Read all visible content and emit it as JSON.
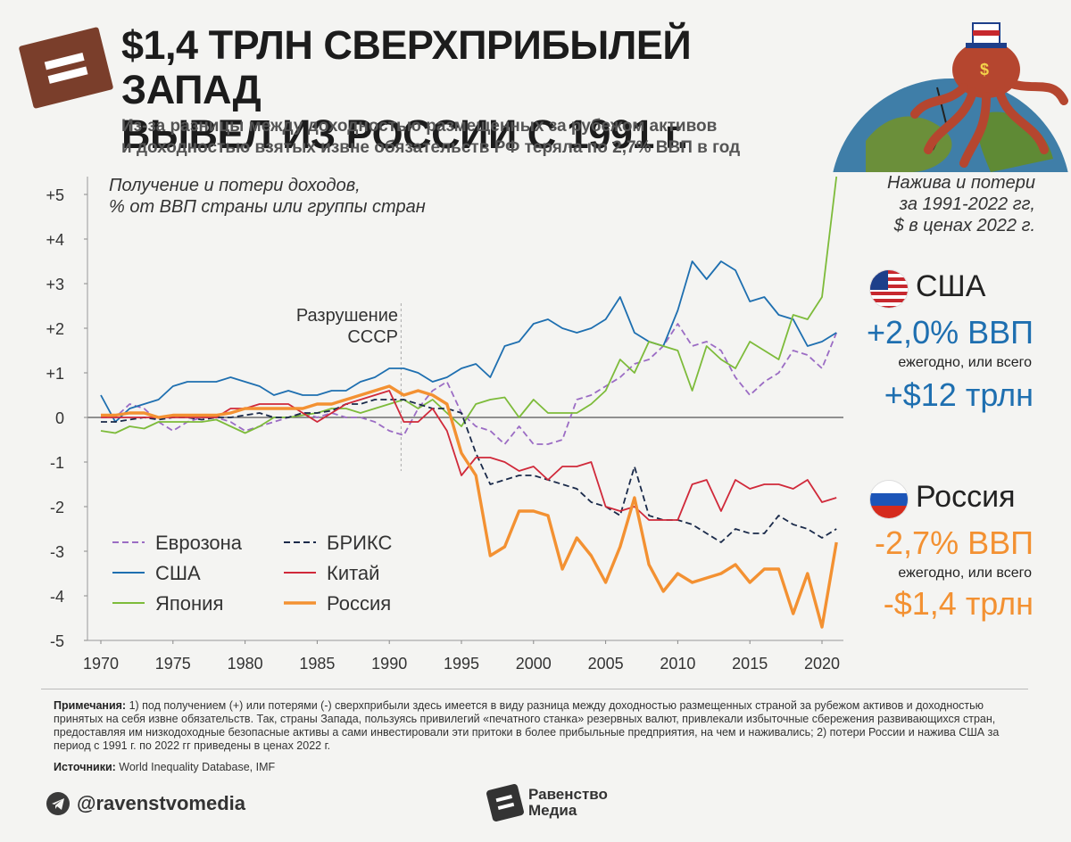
{
  "header": {
    "title_line1": "$1,4 ТРЛН СВЕРХПРИБЫЛЕЙ ЗАПАД",
    "title_line2": "ВЫВЕЛ ИЗ РОССИИ С 1991 г.",
    "subtitle_line1": "Из-за разницы между доходностью размещенных за рубежом активов",
    "subtitle_line2": "и доходностью взятых извне обязательств РФ теряла по 2,7% ВВП в год"
  },
  "chart_data": {
    "type": "line",
    "caption_line1": "Получение и потери доходов,",
    "caption_line2": "% от ВВП страны или группы стран",
    "x": [
      1970,
      1971,
      1972,
      1973,
      1974,
      1975,
      1976,
      1977,
      1978,
      1979,
      1980,
      1981,
      1982,
      1983,
      1984,
      1985,
      1986,
      1987,
      1988,
      1989,
      1990,
      1991,
      1992,
      1993,
      1994,
      1995,
      1996,
      1997,
      1998,
      1999,
      2000,
      2001,
      2002,
      2003,
      2004,
      2005,
      2006,
      2007,
      2008,
      2009,
      2010,
      2011,
      2012,
      2013,
      2014,
      2015,
      2016,
      2017,
      2018,
      2019,
      2020,
      2021
    ],
    "xlim": [
      1969,
      2022
    ],
    "ylim": [
      -5,
      5.4
    ],
    "x_ticks": [
      "1970",
      "1975",
      "1980",
      "1985",
      "1990",
      "1995",
      "2000",
      "2005",
      "2010",
      "2015",
      "2020"
    ],
    "y_ticks": [
      "+5",
      "+4",
      "+3",
      "+2",
      "+1",
      "0",
      "-1",
      "-2",
      "-3",
      "-4",
      "-5"
    ],
    "annotation": {
      "year": 1991,
      "line1": "Разрушение",
      "line2": "СССР"
    },
    "series": [
      {
        "name": "Еврозона",
        "color": "#9b6cc4",
        "dash": true,
        "values": [
          0.0,
          0.0,
          0.3,
          0.2,
          -0.1,
          -0.3,
          -0.1,
          0.0,
          0.0,
          -0.1,
          -0.3,
          -0.2,
          -0.1,
          0.0,
          0.1,
          0.0,
          0.1,
          0.0,
          0.0,
          -0.1,
          -0.3,
          -0.4,
          0.2,
          0.6,
          0.8,
          0.1,
          -0.2,
          -0.3,
          -0.6,
          -0.2,
          -0.6,
          -0.6,
          -0.5,
          0.4,
          0.5,
          0.7,
          0.9,
          1.2,
          1.3,
          1.6,
          2.1,
          1.6,
          1.7,
          1.5,
          0.9,
          0.5,
          0.8,
          1.0,
          1.5,
          1.4,
          1.1,
          1.9
        ]
      },
      {
        "name": "США",
        "color": "#1e6fb0",
        "dash": false,
        "values": [
          0.5,
          -0.1,
          0.2,
          0.3,
          0.4,
          0.7,
          0.8,
          0.8,
          0.8,
          0.9,
          0.8,
          0.7,
          0.5,
          0.6,
          0.5,
          0.5,
          0.6,
          0.6,
          0.8,
          0.9,
          1.1,
          1.1,
          1.0,
          0.8,
          0.9,
          1.1,
          1.2,
          0.9,
          1.6,
          1.7,
          2.1,
          2.2,
          2.0,
          1.9,
          2.0,
          2.2,
          2.7,
          1.9,
          1.7,
          1.6,
          2.4,
          3.5,
          3.1,
          3.5,
          3.3,
          2.6,
          2.7,
          2.3,
          2.2,
          1.6,
          1.7,
          1.9
        ]
      },
      {
        "name": "Япония",
        "color": "#7dbb3a",
        "dash": false,
        "values": [
          -0.3,
          -0.35,
          -0.2,
          -0.25,
          -0.1,
          -0.1,
          -0.1,
          -0.1,
          -0.05,
          -0.2,
          -0.35,
          -0.2,
          0.0,
          0.0,
          0.05,
          0.1,
          0.2,
          0.2,
          0.1,
          0.2,
          0.3,
          0.4,
          0.2,
          0.4,
          0.1,
          -0.2,
          0.3,
          0.4,
          0.45,
          0.0,
          0.4,
          0.1,
          0.1,
          0.1,
          0.3,
          0.6,
          1.3,
          1.0,
          1.7,
          1.6,
          1.5,
          0.6,
          1.6,
          1.3,
          1.1,
          1.7,
          1.5,
          1.3,
          2.3,
          2.2,
          2.7,
          5.4
        ]
      },
      {
        "name": "БРИКС",
        "color": "#1a2a4a",
        "dash": true,
        "values": [
          -0.1,
          -0.1,
          -0.05,
          0.0,
          -0.05,
          0.0,
          0.0,
          -0.05,
          0.0,
          0.0,
          0.05,
          0.1,
          0.0,
          0.0,
          0.1,
          0.1,
          0.15,
          0.3,
          0.3,
          0.4,
          0.4,
          0.4,
          0.3,
          0.2,
          0.2,
          0.1,
          -0.8,
          -1.5,
          -1.4,
          -1.3,
          -1.3,
          -1.4,
          -1.5,
          -1.6,
          -1.9,
          -2.0,
          -2.2,
          -1.1,
          -2.2,
          -2.3,
          -2.3,
          -2.4,
          -2.6,
          -2.8,
          -2.5,
          -2.6,
          -2.6,
          -2.2,
          -2.4,
          -2.5,
          -2.7,
          -2.5
        ]
      },
      {
        "name": "Китай",
        "color": "#d0293a",
        "dash": false,
        "values": [
          0.0,
          0.0,
          0.0,
          0.0,
          0.0,
          0.0,
          0.0,
          0.0,
          0.0,
          0.2,
          0.2,
          0.3,
          0.3,
          0.3,
          0.1,
          -0.1,
          0.1,
          0.3,
          0.4,
          0.5,
          0.6,
          -0.1,
          -0.1,
          0.2,
          -0.3,
          -1.3,
          -0.9,
          -0.9,
          -1.0,
          -1.2,
          -1.1,
          -1.4,
          -1.1,
          -1.1,
          -1.0,
          -2.0,
          -2.1,
          -2.0,
          -2.3,
          -2.3,
          -2.3,
          -1.5,
          -1.4,
          -2.1,
          -1.4,
          -1.6,
          -1.5,
          -1.5,
          -1.6,
          -1.4,
          -1.9,
          -1.8
        ]
      },
      {
        "name": "Россия",
        "color": "#f39132",
        "dash": false,
        "values": [
          0.05,
          0.05,
          0.1,
          0.1,
          0.0,
          0.05,
          0.05,
          0.05,
          0.05,
          0.1,
          0.2,
          0.2,
          0.2,
          0.2,
          0.2,
          0.3,
          0.3,
          0.4,
          0.5,
          0.6,
          0.7,
          0.5,
          0.6,
          0.5,
          0.3,
          -0.8,
          -1.3,
          -3.1,
          -2.9,
          -2.1,
          -2.1,
          -2.2,
          -3.4,
          -2.7,
          -3.1,
          -3.7,
          -2.9,
          -1.8,
          -3.3,
          -3.9,
          -3.5,
          -3.7,
          -3.6,
          -3.5,
          -3.3,
          -3.7,
          -3.4,
          -3.4,
          -4.4,
          -3.5,
          -4.7,
          -2.8
        ]
      }
    ]
  },
  "legend": {
    "col1": [
      "Еврозона",
      "США",
      "Япония"
    ],
    "col2": [
      "БРИКС",
      "Китай",
      "Россия"
    ]
  },
  "side_panel": {
    "caption_line1": "Нажива и потери",
    "caption_line2": "за 1991-2022 гг,",
    "caption_line3": "$ в ценах 2022 г.",
    "usa": {
      "name": "США",
      "pct": "+2,0% ВВП",
      "every": "ежегодно, или всего",
      "total": "+$12 трлн",
      "color": "#1e6fb0"
    },
    "russia": {
      "name": "Россия",
      "pct": "-2,7% ВВП",
      "every": "ежегодно, или всего",
      "total": "-$1,4 трлн",
      "color": "#f39132"
    }
  },
  "footer": {
    "note_label": "Примечания:",
    "note_text": " 1) под получением (+) или потерями (-) сверхприбыли здесь имеется в виду разница между доходностью размещенных страной за рубежом активов и доходностью принятых на себя извне обязательств. Так, страны Запада, пользуясь привилегий «печатного станка» резервных валют, привлекали избыточные сбережения развивающихся стран, предоставляя им низкодоходные безопасные активы а сами инвестировали эти притоки в более прибыльные предприятия, на чем и наживались; 2) потери России и нажива США за период с 1991 г. по 2022 гг приведены в ценах 2022 г.",
    "sources_label": "Источники:",
    "sources_text": " World Inequality Database, IMF",
    "social": "@ravenstvomedia",
    "brand_line1": "Равенство",
    "brand_line2": "Медиа"
  }
}
